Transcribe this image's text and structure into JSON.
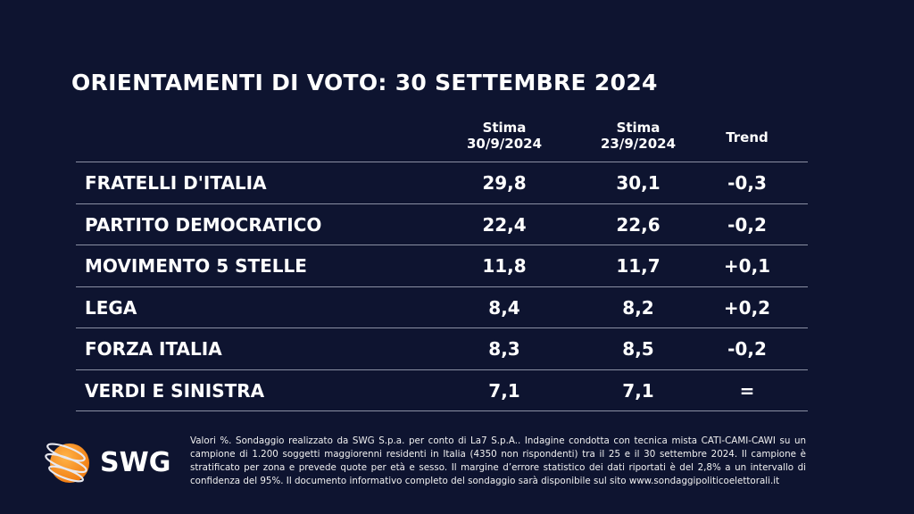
{
  "title": "ORIENTAMENTI DI VOTO: 30 SETTEMBRE 2024",
  "headers": {
    "col1": [
      "Stima",
      "30/9/2024"
    ],
    "col2": [
      "Stima",
      "23/9/2024"
    ],
    "col3": "Trend"
  },
  "rows": [
    {
      "party": "FRATELLI D'ITALIA",
      "current": "29,8",
      "previous": "30,1",
      "trend": "-0,3"
    },
    {
      "party": "PARTITO DEMOCRATICO",
      "current": "22,4",
      "previous": "22,6",
      "trend": "-0,2"
    },
    {
      "party": "MOVIMENTO 5 STELLE",
      "current": "11,8",
      "previous": "11,7",
      "trend": "+0,1"
    },
    {
      "party": "LEGA",
      "current": "8,4",
      "previous": "8,2",
      "trend": "+0,2"
    },
    {
      "party": "FORZA ITALIA",
      "current": "8,3",
      "previous": "8,5",
      "trend": "-0,2"
    },
    {
      "party": "VERDI E SINISTRA",
      "current": "7,1",
      "previous": "7,1",
      "trend": "="
    }
  ],
  "logo": {
    "text": "SWG",
    "icon": "orange-globe-icon",
    "color": "#f7931e"
  },
  "note": "Valori %. Sondaggio realizzato da SWG S.p.a. per conto di La7 S.p.A.. Indagine condotta con tecnica mista CATI-CAMI-CAWI su un campione di 1.200 soggetti maggiorenni residenti in Italia (4350 non rispondenti) tra il 25 e il 30 settembre 2024. Il campione è stratificato per zona e prevede quote per età e sesso. Il margine d’errore statistico dei dati riportati è del 2,8% a un intervallo di confidenza del 95%. Il documento informativo completo del sondaggio sarà disponibile sul sito www.sondaggipoliticoelettorali.it"
}
